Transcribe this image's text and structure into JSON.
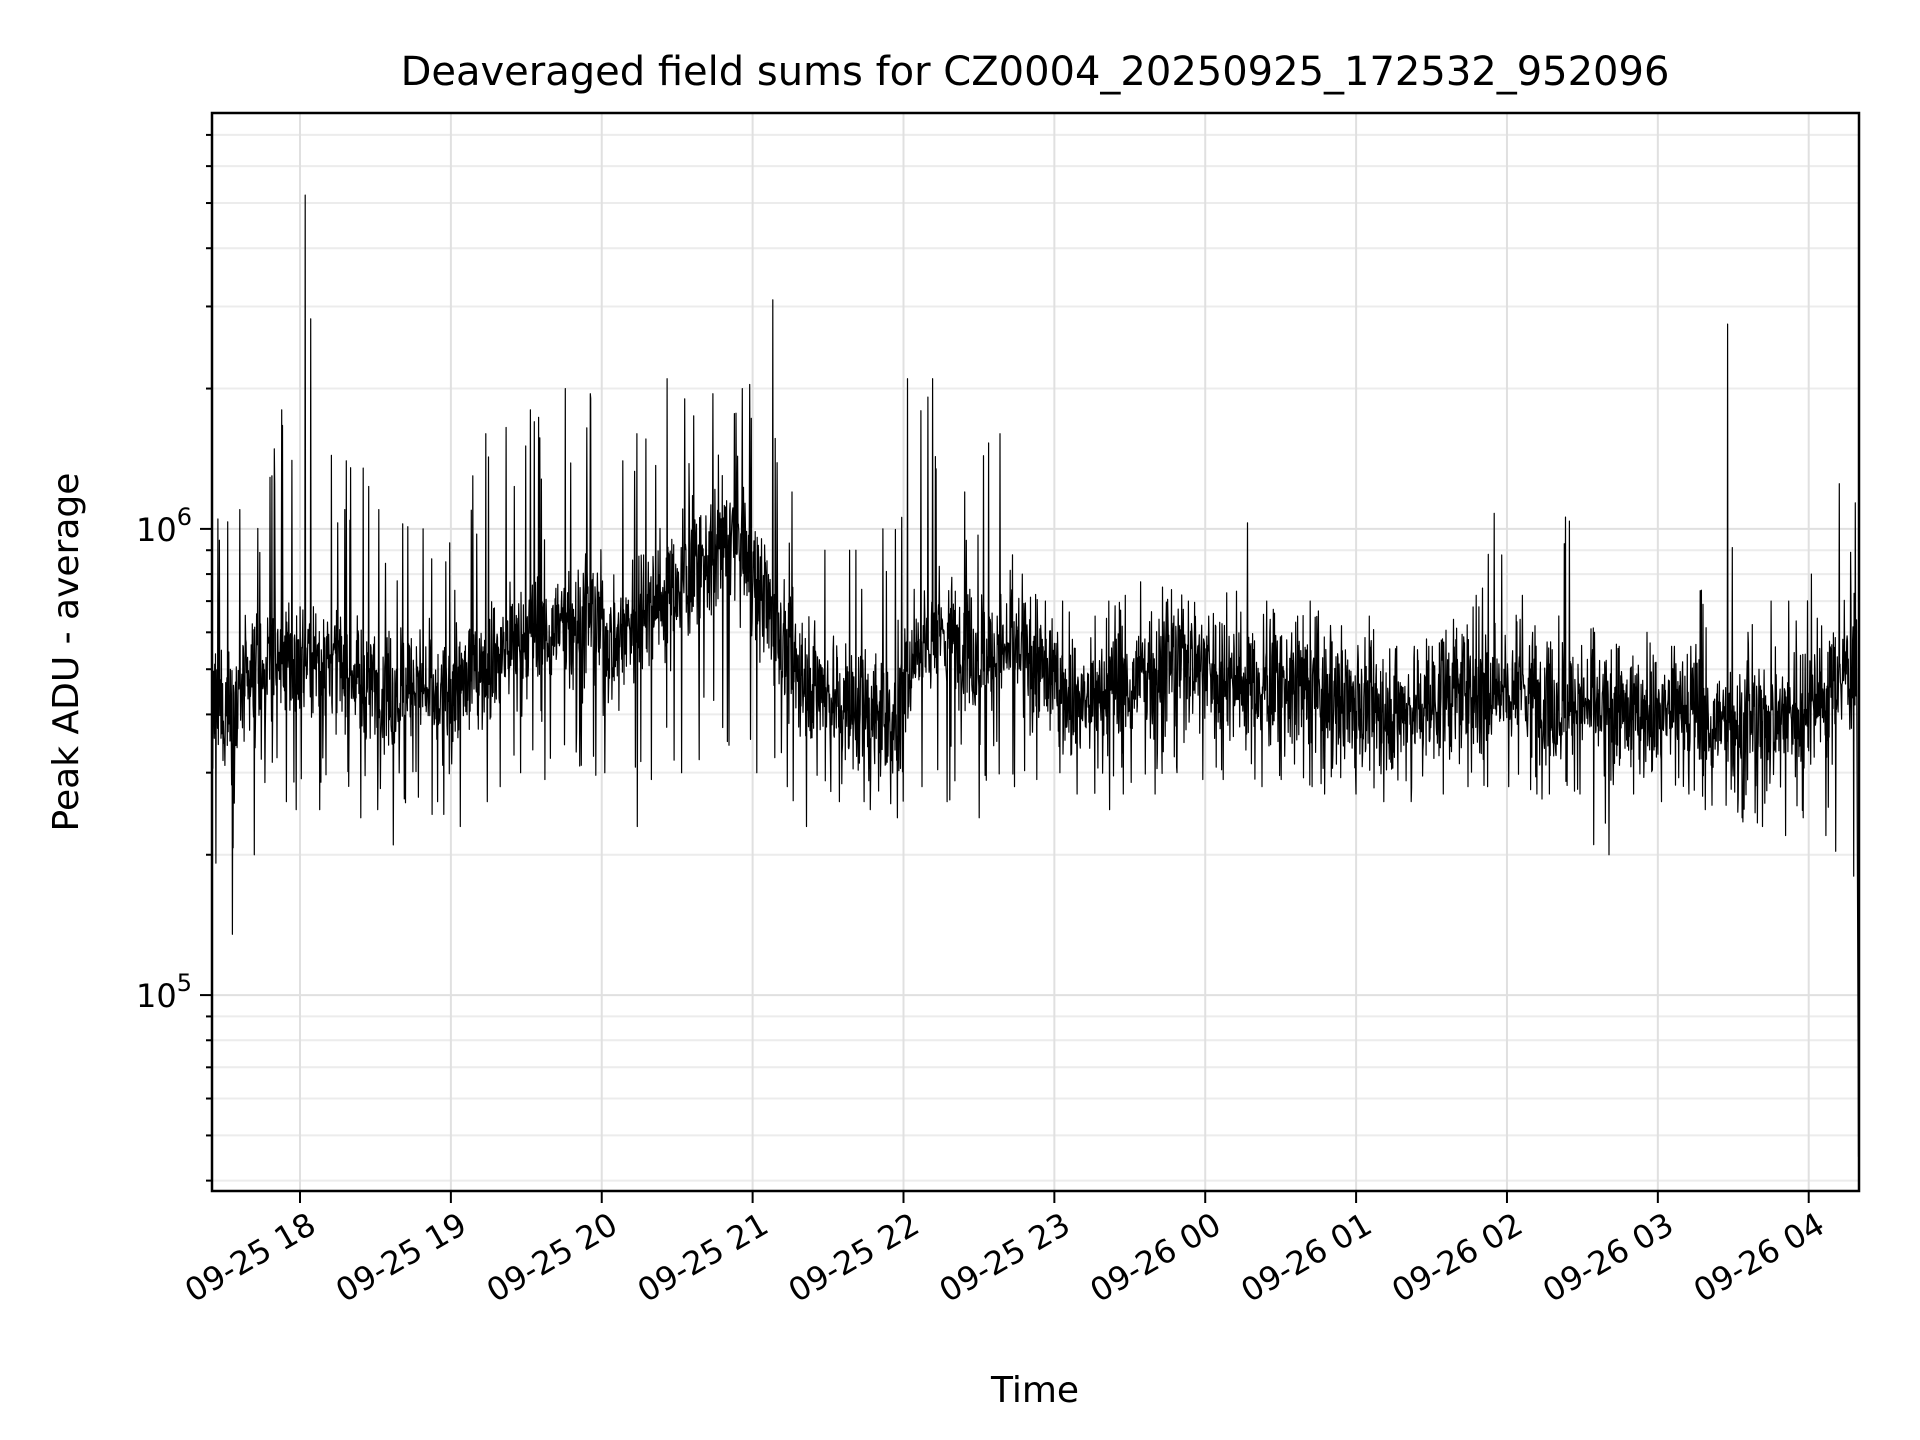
{
  "chart_data": {
    "type": "line",
    "title": "Deaveraged field sums for CZ0004_20250925_172532_952096",
    "xlabel": "Time",
    "ylabel": "Peak ADU - average",
    "yscale": "log",
    "ylim": [
      38000,
      7800000
    ],
    "xlim": [
      "2025-09-25 17:25",
      "2025-09-26 04:20"
    ],
    "grid": true,
    "line_color": "#000000",
    "x_ticks": [
      {
        "time": "2025-09-25 18:00",
        "label": "09-25 18"
      },
      {
        "time": "2025-09-25 19:00",
        "label": "09-25 19"
      },
      {
        "time": "2025-09-25 20:00",
        "label": "09-25 20"
      },
      {
        "time": "2025-09-25 21:00",
        "label": "09-25 21"
      },
      {
        "time": "2025-09-25 22:00",
        "label": "09-25 22"
      },
      {
        "time": "2025-09-25 23:00",
        "label": "09-25 23"
      },
      {
        "time": "2025-09-26 00:00",
        "label": "09-26 00"
      },
      {
        "time": "2025-09-26 01:00",
        "label": "09-26 01"
      },
      {
        "time": "2025-09-26 02:00",
        "label": "09-26 02"
      },
      {
        "time": "2025-09-26 03:00",
        "label": "09-26 03"
      },
      {
        "time": "2025-09-26 04:00",
        "label": "09-26 04"
      }
    ],
    "y_ticks": [
      {
        "value": 100000,
        "base": "10",
        "exp": "5"
      },
      {
        "value": 1000000,
        "base": "10",
        "exp": "6"
      }
    ],
    "series": [
      {
        "x": [
          "2025-09-25 17:25",
          "2025-09-25 17:35",
          "2025-09-25 17:45",
          "2025-09-25 17:55",
          "2025-09-25 18:05",
          "2025-09-25 18:15",
          "2025-09-25 18:25",
          "2025-09-25 18:35",
          "2025-09-25 18:45",
          "2025-09-25 18:55",
          "2025-09-25 19:05",
          "2025-09-25 19:15",
          "2025-09-25 19:25",
          "2025-09-25 19:35",
          "2025-09-25 19:45",
          "2025-09-25 19:55",
          "2025-09-25 20:05",
          "2025-09-25 20:15",
          "2025-09-25 20:25",
          "2025-09-25 20:35",
          "2025-09-25 20:45",
          "2025-09-25 20:55",
          "2025-09-25 21:05",
          "2025-09-25 21:15",
          "2025-09-25 21:25",
          "2025-09-25 21:35",
          "2025-09-25 21:45",
          "2025-09-25 21:55",
          "2025-09-25 22:05",
          "2025-09-25 22:15",
          "2025-09-25 22:25",
          "2025-09-25 22:35",
          "2025-09-25 22:45",
          "2025-09-25 22:55",
          "2025-09-25 23:05",
          "2025-09-25 23:15",
          "2025-09-25 23:25",
          "2025-09-25 23:35",
          "2025-09-25 23:45",
          "2025-09-25 23:55",
          "2025-09-26 00:05",
          "2025-09-26 00:15",
          "2025-09-26 00:25",
          "2025-09-26 00:35",
          "2025-09-26 00:45",
          "2025-09-26 00:55",
          "2025-09-26 01:05",
          "2025-09-26 01:15",
          "2025-09-26 01:25",
          "2025-09-26 01:35",
          "2025-09-26 01:45",
          "2025-09-26 01:55",
          "2025-09-26 02:05",
          "2025-09-26 02:15",
          "2025-09-26 02:25",
          "2025-09-26 02:35",
          "2025-09-26 02:45",
          "2025-09-26 02:55",
          "2025-09-26 03:05",
          "2025-09-26 03:15",
          "2025-09-26 03:25",
          "2025-09-26 03:35",
          "2025-09-26 03:45",
          "2025-09-26 03:55",
          "2025-09-26 04:05",
          "2025-09-26 04:15"
        ],
        "values": [
          400000,
          420000,
          500000,
          520000,
          540000,
          500000,
          470000,
          450000,
          460000,
          420000,
          470000,
          520000,
          560000,
          600000,
          620000,
          650000,
          560000,
          680000,
          720000,
          800000,
          900000,
          950000,
          700000,
          520000,
          470000,
          420000,
          400000,
          380000,
          560000,
          600000,
          560000,
          520000,
          560000,
          500000,
          440000,
          420000,
          450000,
          480000,
          510000,
          530000,
          490000,
          470000,
          460000,
          470000,
          440000,
          420000,
          420000,
          410000,
          420000,
          440000,
          450000,
          460000,
          460000,
          430000,
          420000,
          410000,
          400000,
          400000,
          410000,
          400000,
          380000,
          380000,
          390000,
          410000,
          440000,
          500000
        ],
        "peak_min": [
          135000,
          200000,
          260000,
          250000,
          250000,
          240000,
          250000,
          210000,
          260000,
          230000,
          260000,
          280000,
          300000,
          290000,
          310000,
          300000,
          230000,
          290000,
          300000,
          320000,
          350000,
          300000,
          280000,
          230000,
          260000,
          260000,
          250000,
          240000,
          280000,
          260000,
          240000,
          280000,
          290000,
          300000,
          270000,
          250000,
          270000,
          270000,
          300000,
          290000,
          290000,
          280000,
          290000,
          280000,
          270000,
          270000,
          260000,
          260000,
          270000,
          280000,
          280000,
          280000,
          270000,
          270000,
          270000,
          200000,
          270000,
          260000,
          270000,
          250000,
          240000,
          230000,
          220000,
          240000,
          220000,
          180000
        ],
        "peak_max": [
          1050000,
          1100000,
          1300000,
          1800000,
          5200000,
          1400000,
          1350000,
          1100000,
          1000000,
          850000,
          1300000,
          1600000,
          1650000,
          1800000,
          2000000,
          1950000,
          1400000,
          1600000,
          2100000,
          1900000,
          1950000,
          2000000,
          3100000,
          1200000,
          900000,
          900000,
          900000,
          1000000,
          2100000,
          2100000,
          1200000,
          1600000,
          800000,
          700000,
          700000,
          650000,
          700000,
          770000,
          750000,
          700000,
          650000,
          1030000,
          700000,
          650000,
          700000,
          620000,
          650000,
          560000,
          560000,
          640000,
          680000,
          1080000,
          720000,
          620000,
          1060000,
          600000,
          560000,
          600000,
          560000,
          560000,
          2750000,
          600000,
          700000,
          700000,
          800000,
          1250000
        ]
      }
    ]
  }
}
